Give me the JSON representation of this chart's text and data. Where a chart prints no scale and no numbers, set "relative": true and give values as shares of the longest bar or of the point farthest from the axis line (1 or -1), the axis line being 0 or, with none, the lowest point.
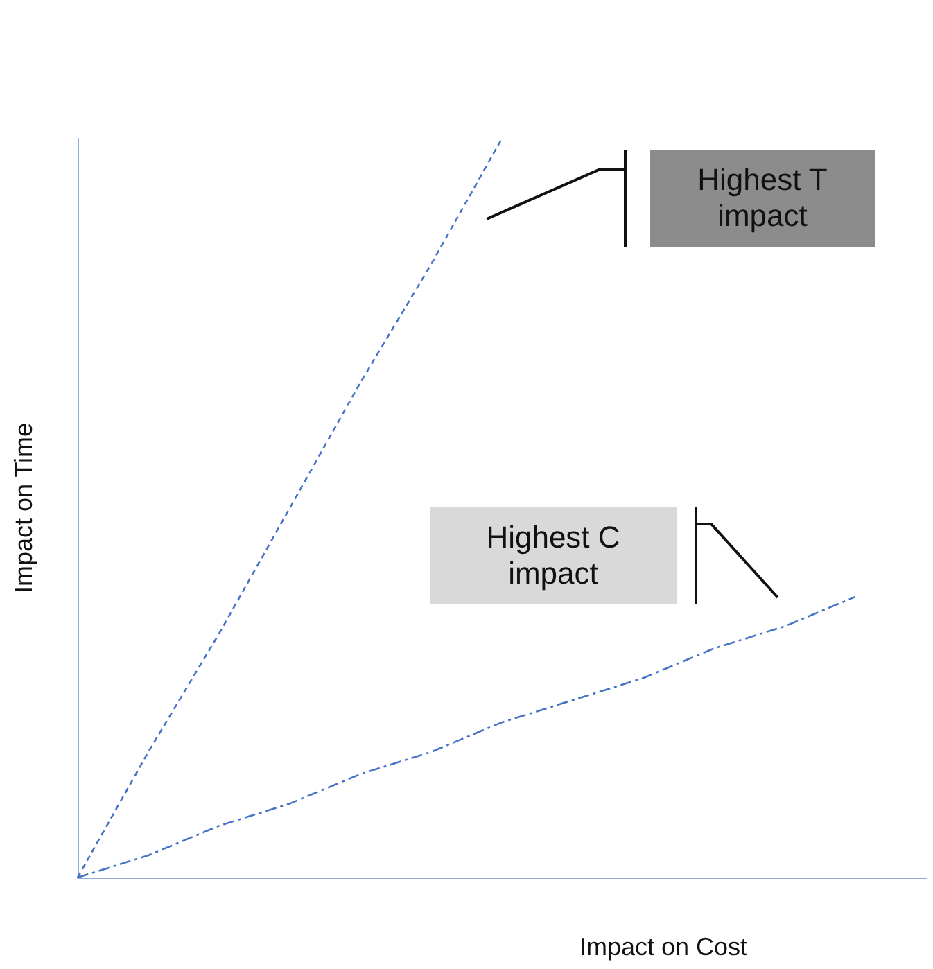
{
  "chart_data": {
    "type": "line",
    "relative": true,
    "xlabel": "Impact on Cost",
    "ylabel": "Impact on Time",
    "grid": false,
    "marker": "none",
    "categories": [
      null,
      null,
      null,
      null,
      null,
      null,
      null,
      null,
      null,
      null,
      null,
      null,
      null
    ],
    "series": [
      {
        "color": "#4472c4",
        "line_style": "dashed",
        "values": [
          0,
          0.17,
          0.33,
          0.5,
          0.67,
          0.83,
          1,
          null,
          null,
          null,
          null,
          null,
          null
        ]
      },
      {
        "color": "#4472c4",
        "line_style": "dashdot",
        "values": [
          0,
          0.03,
          0.07,
          0.1,
          0.14,
          0.17,
          0.21,
          0.24,
          0.27,
          0.31,
          0.34,
          0.38,
          null
        ]
      }
    ],
    "annotations": [
      "Highest T\nimpact",
      "Highest C\nimpact"
    ]
  }
}
